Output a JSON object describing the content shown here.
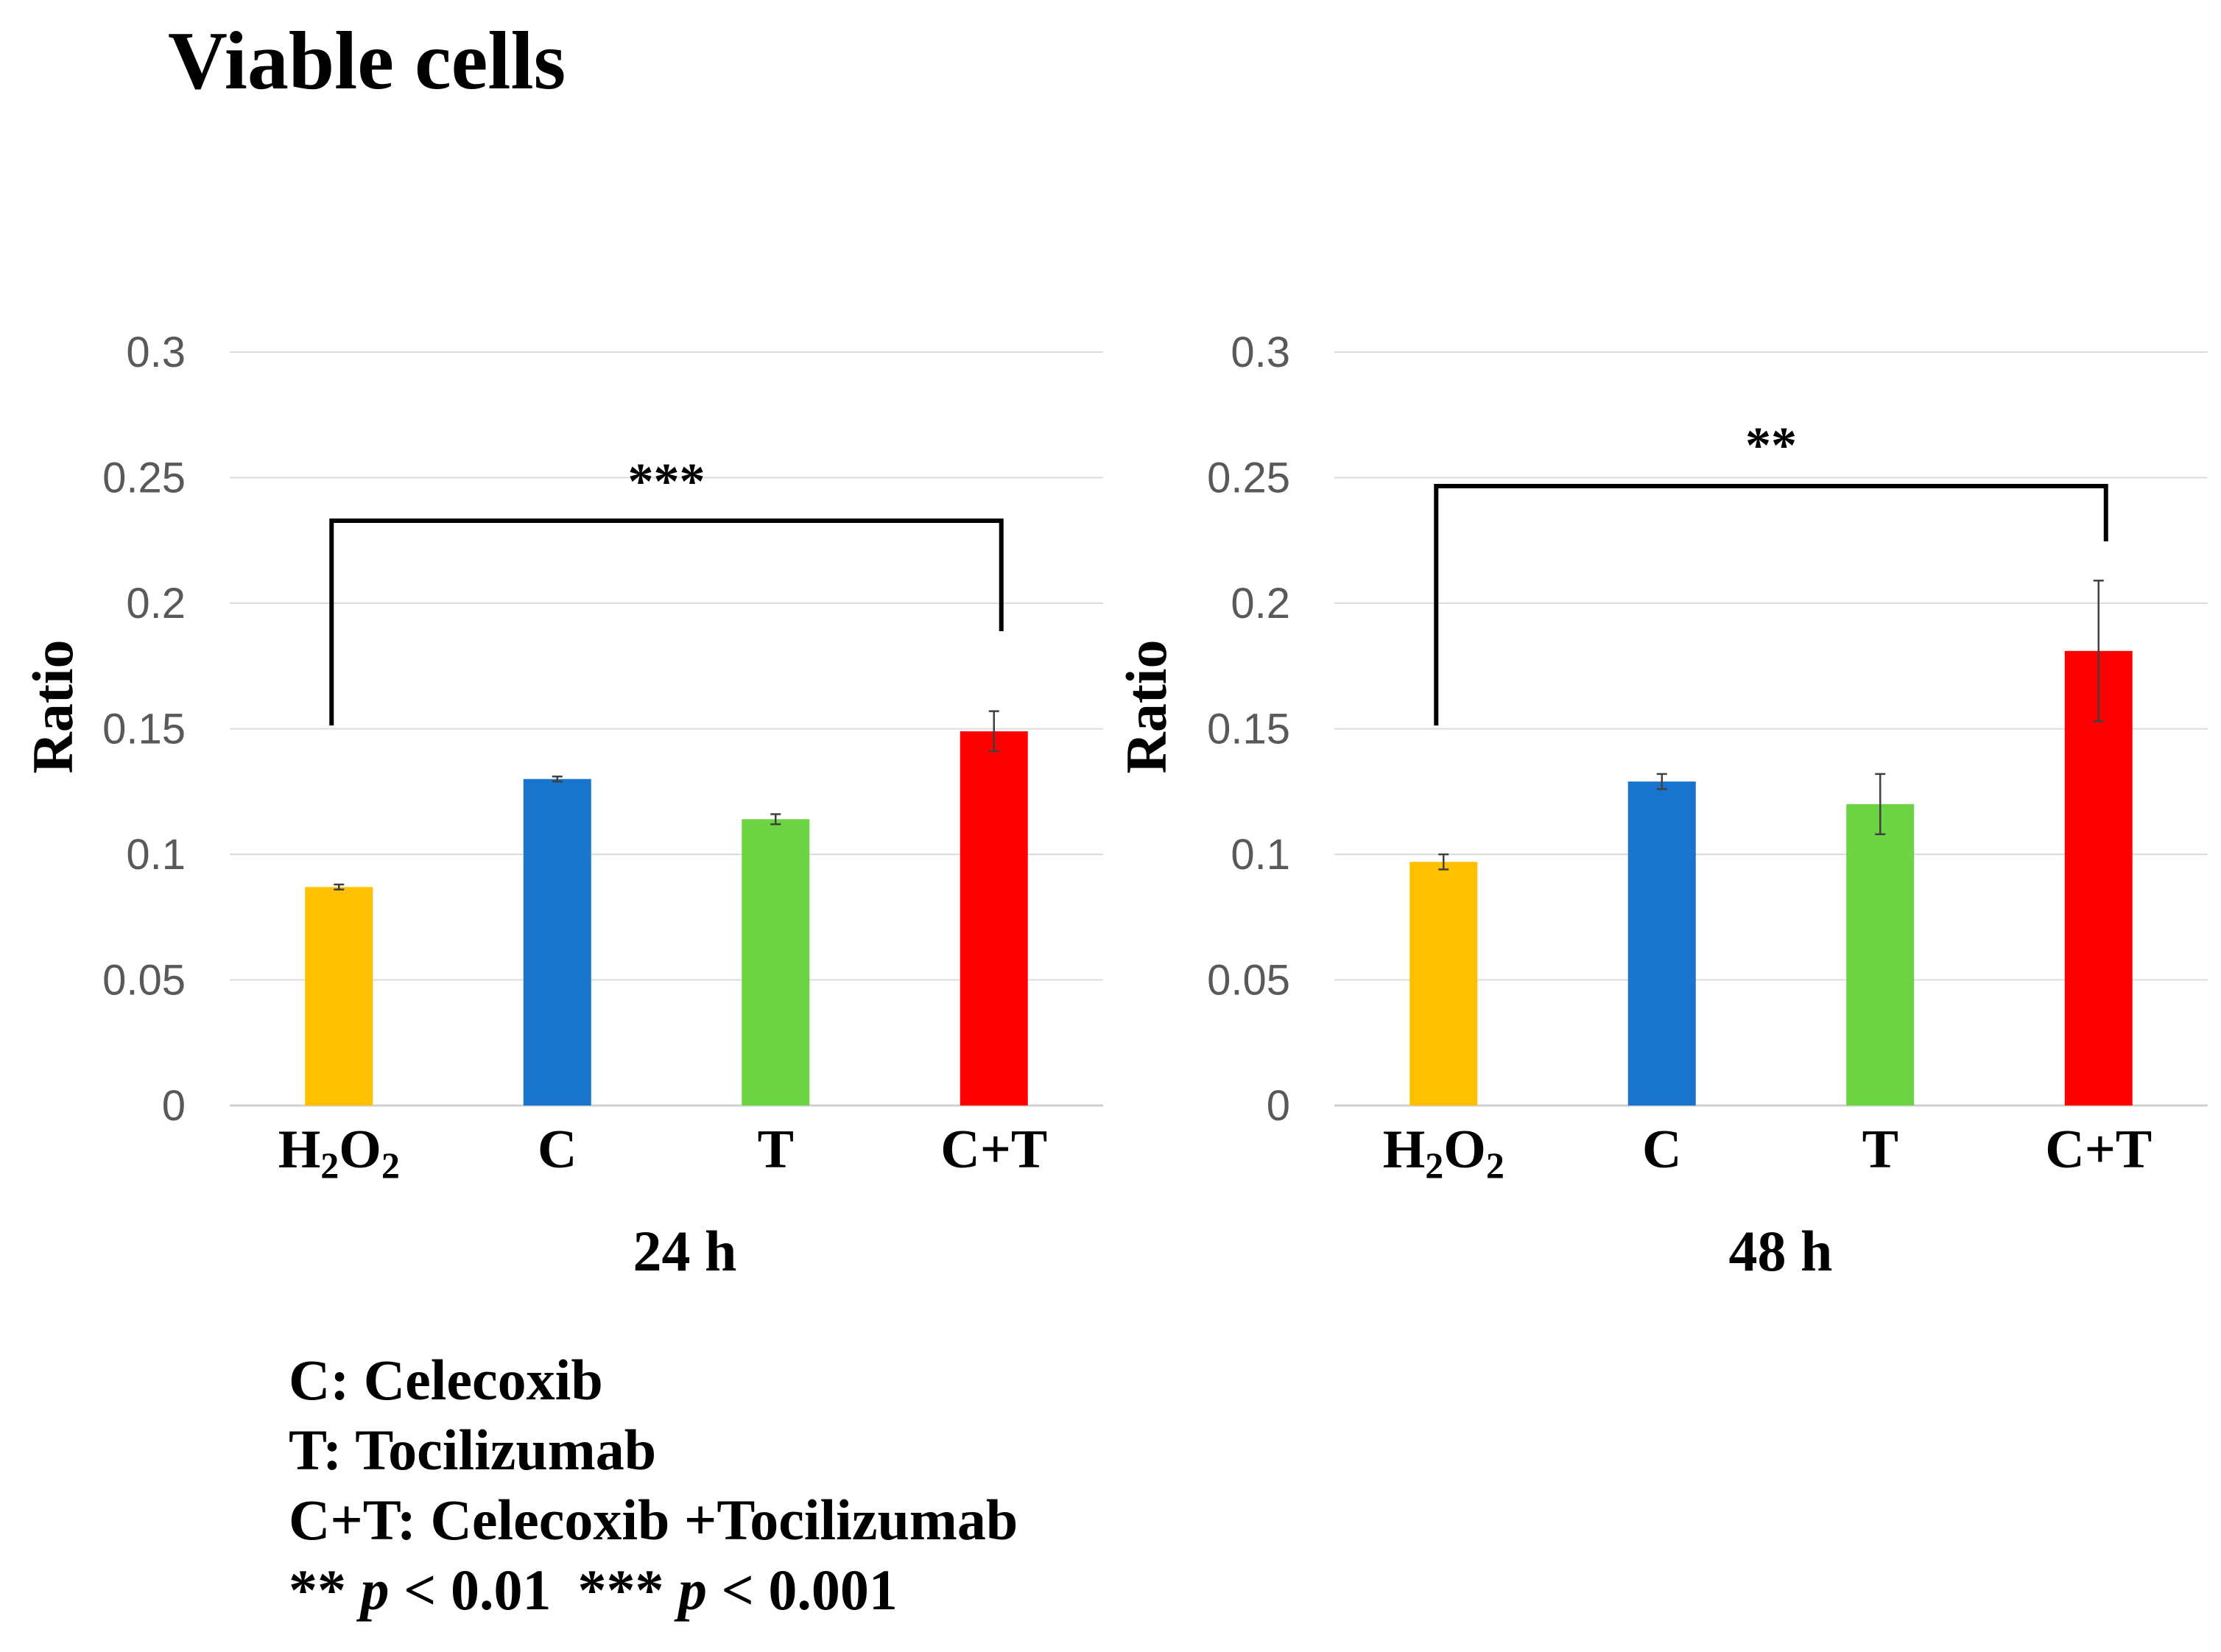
{
  "figure": {
    "title": "Viable cells"
  },
  "chart_data": [
    {
      "type": "bar",
      "title": "Viable cells",
      "xlabel": "24 h",
      "ylabel": "Ratio",
      "ylim": [
        0,
        0.3
      ],
      "yticks": [
        "0",
        "0.05",
        "0.1",
        "0.15",
        "0.2",
        "0.25",
        "0.3"
      ],
      "grid": true,
      "categories": [
        "H2O2",
        "C",
        "T",
        "C+T"
      ],
      "values": [
        0.087,
        0.13,
        0.114,
        0.149
      ],
      "errors": [
        0.001,
        0.001,
        0.002,
        0.008
      ],
      "colors": [
        "#FFC000",
        "#1874CD",
        "#6CD443",
        "#FF0000"
      ],
      "significance": {
        "label": "***",
        "from": "H2O2",
        "to": "C+T"
      }
    },
    {
      "type": "bar",
      "title": "Viable cells",
      "xlabel": "48 h",
      "ylabel": "Ratio",
      "ylim": [
        0,
        0.3
      ],
      "yticks": [
        "0",
        "0.05",
        "0.1",
        "0.15",
        "0.2",
        "0.25",
        "0.3"
      ],
      "grid": true,
      "categories": [
        "H2O2",
        "C",
        "T",
        "C+T"
      ],
      "values": [
        0.097,
        0.129,
        0.12,
        0.181
      ],
      "errors": [
        0.003,
        0.003,
        0.012,
        0.028
      ],
      "colors": [
        "#FFC000",
        "#1874CD",
        "#6CD443",
        "#FF0000"
      ],
      "significance": {
        "label": "**",
        "from": "H2O2",
        "to": "C+T"
      }
    }
  ],
  "legend": {
    "line1": "C: Celecoxib",
    "line2": "T: Tocilizumab",
    "line3": "C+T: Celecoxib +Tocilizumab",
    "sig1_stars": "**",
    "sig1_p": "p",
    "sig1_rest": "< 0.01",
    "sig2_stars": "***",
    "sig2_p": "p",
    "sig2_rest": "< 0.001"
  }
}
